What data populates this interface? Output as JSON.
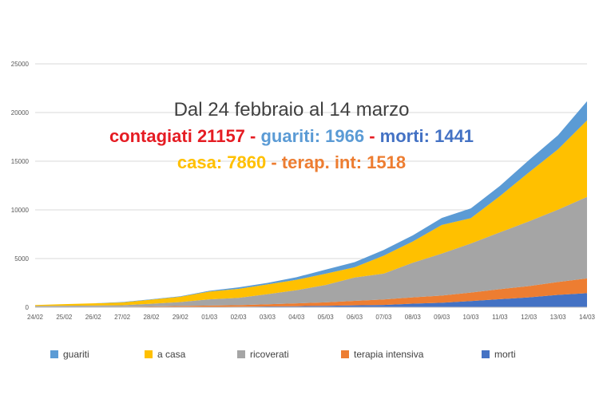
{
  "chart_data": {
    "type": "area",
    "stacked": true,
    "categories": [
      "24/02",
      "25/02",
      "26/02",
      "27/02",
      "28/02",
      "29/02",
      "01/03",
      "02/03",
      "03/03",
      "04/03",
      "05/03",
      "06/03",
      "07/03",
      "08/03",
      "09/03",
      "10/03",
      "11/03",
      "12/03",
      "13/03",
      "14/03"
    ],
    "ylim": [
      0,
      25000
    ],
    "yticks": [
      0,
      5000,
      10000,
      15000,
      20000,
      25000
    ],
    "grid": true,
    "legend_position": "bottom",
    "series": [
      {
        "name": "morti",
        "color": "#4472C4",
        "values": [
          7,
          10,
          12,
          17,
          21,
          29,
          34,
          52,
          79,
          107,
          148,
          197,
          233,
          366,
          463,
          631,
          827,
          1016,
          1266,
          1441
        ]
      },
      {
        "name": "terapia intensiva",
        "color": "#ED7D31",
        "values": [
          26,
          27,
          35,
          36,
          64,
          105,
          140,
          166,
          229,
          295,
          351,
          462,
          567,
          650,
          733,
          877,
          1028,
          1153,
          1328,
          1518
        ]
      },
      {
        "name": "ricoverati",
        "color": "#A5A5A5",
        "values": [
          101,
          114,
          128,
          150,
          278,
          401,
          639,
          742,
          1034,
          1346,
          1790,
          2394,
          2651,
          3557,
          4316,
          5038,
          5838,
          6650,
          7426,
          8372
        ]
      },
      {
        "name": "a casa",
        "color": "#FFC000",
        "values": [
          94,
          162,
          221,
          284,
          412,
          543,
          798,
          927,
          1000,
          1065,
          1155,
          1060,
          1843,
          2180,
          2936,
          2599,
          3724,
          5036,
          6201,
          7860
        ]
      },
      {
        "name": "guariti",
        "color": "#5B9BD5",
        "values": [
          1,
          1,
          3,
          45,
          46,
          46,
          83,
          149,
          160,
          276,
          414,
          523,
          589,
          622,
          724,
          1004,
          1045,
          1258,
          1439,
          1966
        ]
      }
    ],
    "annotation": {
      "line1": "Dal 24 febbraio al 14 marzo",
      "line2": [
        {
          "text": "contagiati 21157",
          "color": "#E51C23"
        },
        {
          "text": " - ",
          "color": "#E51C23"
        },
        {
          "text": "guariti: 1966",
          "color": "#5B9BD5"
        },
        {
          "text": " - ",
          "color": "#E51C23"
        },
        {
          "text": "morti: 1441",
          "color": "#4472C4"
        }
      ],
      "line3": [
        {
          "text": "casa: 7860",
          "color": "#FFC000"
        },
        {
          "text": " - ",
          "color": "#ED7D31"
        },
        {
          "text": "terap. int: 1518",
          "color": "#ED7D31"
        }
      ]
    },
    "legend_order": [
      "guariti",
      "a casa",
      "ricoverati",
      "terapia intensiva",
      "morti"
    ]
  }
}
